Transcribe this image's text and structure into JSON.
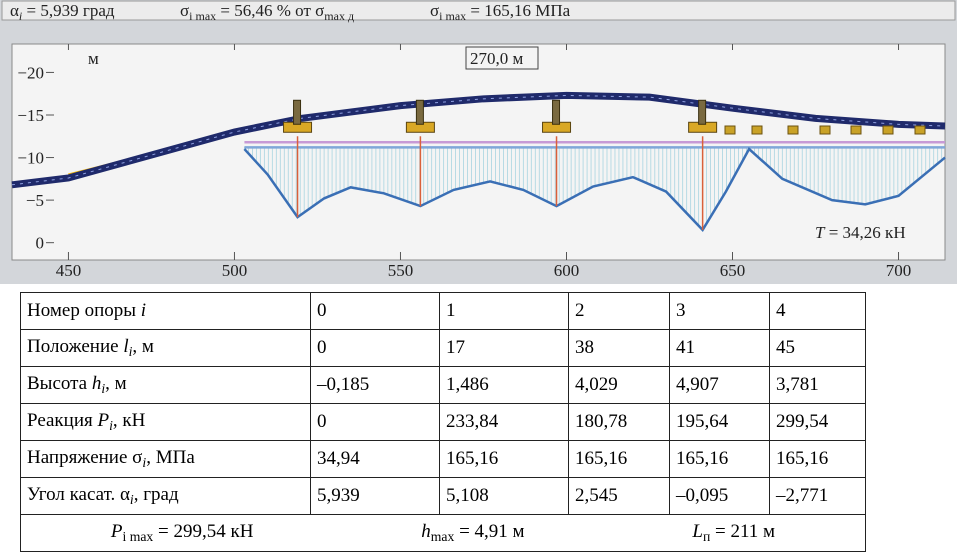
{
  "header": [
    [
      "α",
      {
        "text": "i",
        "style": "sub-italic"
      },
      " = 5,939 град"
    ],
    [
      "σ",
      {
        "text": "i max",
        "style": "sub"
      },
      " = 56,46 % от σ",
      {
        "text": "max д",
        "style": "sub"
      }
    ],
    [
      "σ",
      {
        "text": "i max",
        "style": "sub"
      },
      " = 165,16 МПа"
    ]
  ],
  "chart_data": {
    "type": "line",
    "xlim": [
      433,
      714
    ],
    "ylim": [
      1.8,
      -22.4
    ],
    "xticks": [
      450,
      500,
      550,
      600,
      650,
      700
    ],
    "yticks": [
      {
        "value": -20,
        "label": "−20"
      },
      {
        "value": -15,
        "label": "−15"
      },
      {
        "value": -10,
        "label": "−10"
      },
      {
        "value": -5,
        "label": "−5"
      },
      0
    ],
    "annotations": [
      [
        "м"
      ],
      [
        "270,0 м"
      ],
      [
        {
          "text": "T",
          "style": "italic"
        },
        " = 34,26 кН"
      ]
    ],
    "series": [
      {
        "color": "#1f2a6b",
        "x": [
          433,
          450,
          475,
          500,
          520,
          550,
          575,
          600,
          625,
          650,
          675,
          700,
          714
        ],
        "values": [
          -6.8,
          -7.6,
          -10.3,
          -13,
          -14.6,
          -16.1,
          -16.9,
          -17.3,
          -17.1,
          -15.8,
          -14.6,
          -13.9,
          -13.7
        ]
      },
      {
        "color": "#c79ad6",
        "x": [
          503,
          714
        ],
        "values": [
          -11.8,
          -11.8
        ]
      },
      {
        "color": "#7fa7d8",
        "x": [
          503,
          714
        ],
        "values": [
          -11.2,
          -11.2
        ]
      },
      {
        "color": "#3a6fb5",
        "x": [
          503,
          510,
          519,
          527,
          535,
          545,
          556,
          566,
          577,
          587,
          597,
          608,
          620,
          630,
          641,
          648,
          655,
          665,
          680,
          690,
          700,
          714
        ],
        "values": [
          -11,
          -8,
          -3,
          -5.2,
          -6.5,
          -5.8,
          -4.3,
          -6.2,
          -7.2,
          -6.2,
          -4.3,
          -6.6,
          -7.7,
          -6,
          -1.5,
          -6,
          -11,
          -7.5,
          -5,
          -4.5,
          -5.5,
          -10
        ]
      }
    ],
    "supports": {
      "color": "#d9603a",
      "base": -12.5,
      "x": [
        519,
        556,
        597,
        641
      ],
      "values": [
        -3,
        -4.3,
        -4.3,
        -1.5
      ]
    }
  },
  "table": {
    "rows": [
      [
        [
          "Номер опоры ",
          {
            "text": "i",
            "style": "italic"
          }
        ],
        "0",
        "1",
        "2",
        "3",
        "4"
      ],
      [
        [
          "Положение ",
          {
            "text": "l",
            "style": "italic"
          },
          {
            "text": "i",
            "style": "sub-italic"
          },
          ", м"
        ],
        "0",
        "17",
        "38",
        "41",
        "45"
      ],
      [
        [
          "Высота ",
          {
            "text": "h",
            "style": "italic"
          },
          {
            "text": "i",
            "style": "sub-italic"
          },
          ", м"
        ],
        "–0,185",
        "1,486",
        "4,029",
        "4,907",
        "3,781"
      ],
      [
        [
          "Реакция ",
          {
            "text": "P",
            "style": "italic"
          },
          {
            "text": "i",
            "style": "sub-italic"
          },
          ", кН"
        ],
        "0",
        "233,84",
        "180,78",
        "195,64",
        "299,54"
      ],
      [
        [
          "Напряжение σ",
          {
            "text": "i",
            "style": "sub-italic"
          },
          ", МПа"
        ],
        "34,94",
        "165,16",
        "165,16",
        "165,16",
        "165,16"
      ],
      [
        [
          "Угол касат. α",
          {
            "text": "i",
            "style": "sub-italic"
          },
          ", град"
        ],
        "5,939",
        "5,108",
        "2,545",
        "–0,095",
        "–2,771"
      ]
    ],
    "footer": [
      [
        {
          "text": "P",
          "style": "italic"
        },
        {
          "text": "i max",
          "style": "sub"
        },
        " = 299,54 кН"
      ],
      [
        {
          "text": "h",
          "style": "italic"
        },
        {
          "text": "max",
          "style": "sub"
        },
        " = 4,91 м"
      ],
      [
        {
          "text": "L",
          "style": "italic"
        },
        {
          "text": "п",
          "style": "sub"
        },
        " = 211 м"
      ]
    ]
  }
}
